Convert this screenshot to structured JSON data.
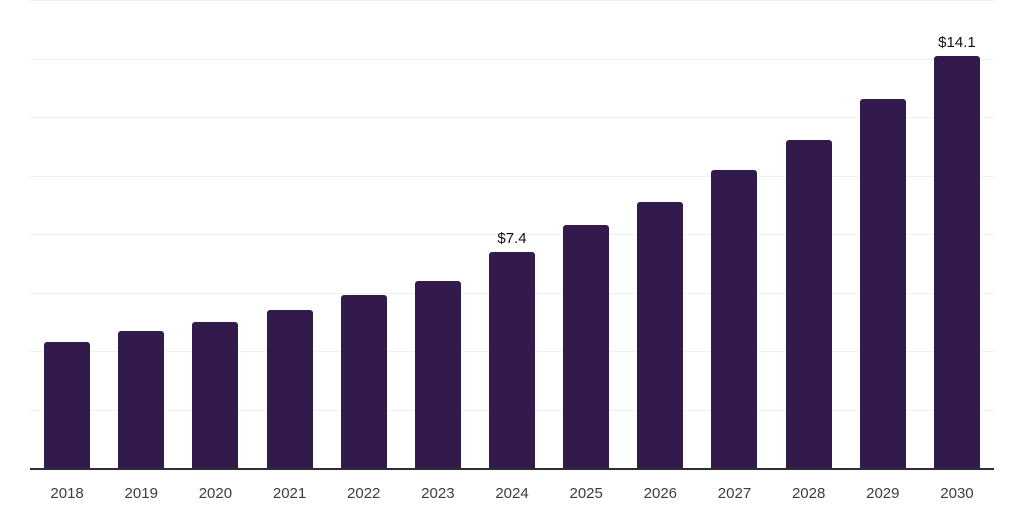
{
  "chart_data": {
    "type": "bar",
    "title": "",
    "xlabel": "",
    "ylabel": "",
    "categories": [
      "2018",
      "2019",
      "2020",
      "2021",
      "2022",
      "2023",
      "2024",
      "2025",
      "2026",
      "2027",
      "2028",
      "2029",
      "2030"
    ],
    "values": [
      4.3,
      4.7,
      5.0,
      5.4,
      5.9,
      6.4,
      7.4,
      8.3,
      9.1,
      10.2,
      11.2,
      12.6,
      14.1
    ],
    "data_labels": [
      "",
      "",
      "",
      "",
      "",
      "",
      "$7.4",
      "",
      "",
      "",
      "",
      "",
      "$14.1"
    ],
    "ylim": [
      0,
      16
    ],
    "gridline_step": 2,
    "grid": "horizontal-only",
    "legend_position": "none",
    "y_axis_tick_labels_visible": false
  },
  "colors": {
    "bar": "#331a4d",
    "gridline": "#f0f0f0",
    "axis_line": "#2e2e2e",
    "tick_label": "#3d3d3d",
    "value_label": "#111111",
    "background": "#ffffff"
  }
}
